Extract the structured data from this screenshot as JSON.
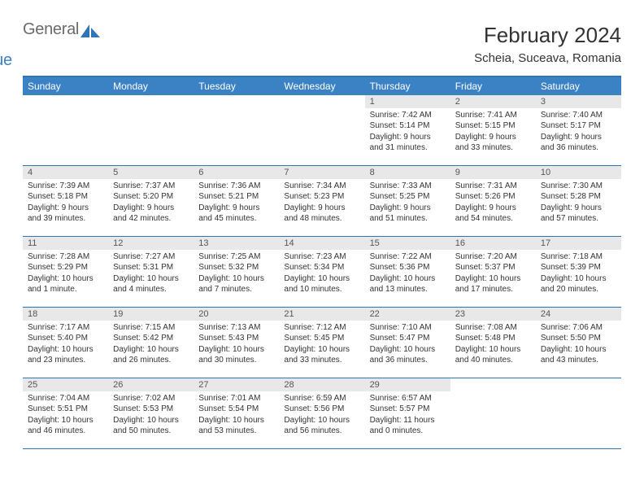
{
  "logo": {
    "general": "General",
    "blue": "Blue"
  },
  "title": "February 2024",
  "location": "Scheia, Suceava, Romania",
  "colors": {
    "header_bar": "#3b82c4",
    "border": "#2f74b5",
    "day_number_bg": "#e8e8e8",
    "text": "#333333",
    "logo_gray": "#6b6b6b",
    "logo_blue": "#3b82c4"
  },
  "weekdays": [
    "Sunday",
    "Monday",
    "Tuesday",
    "Wednesday",
    "Thursday",
    "Friday",
    "Saturday"
  ],
  "weeks": [
    [
      {
        "n": "",
        "sr": "",
        "ss": "",
        "dl": ""
      },
      {
        "n": "",
        "sr": "",
        "ss": "",
        "dl": ""
      },
      {
        "n": "",
        "sr": "",
        "ss": "",
        "dl": ""
      },
      {
        "n": "",
        "sr": "",
        "ss": "",
        "dl": ""
      },
      {
        "n": "1",
        "sr": "Sunrise: 7:42 AM",
        "ss": "Sunset: 5:14 PM",
        "dl": "Daylight: 9 hours and 31 minutes."
      },
      {
        "n": "2",
        "sr": "Sunrise: 7:41 AM",
        "ss": "Sunset: 5:15 PM",
        "dl": "Daylight: 9 hours and 33 minutes."
      },
      {
        "n": "3",
        "sr": "Sunrise: 7:40 AM",
        "ss": "Sunset: 5:17 PM",
        "dl": "Daylight: 9 hours and 36 minutes."
      }
    ],
    [
      {
        "n": "4",
        "sr": "Sunrise: 7:39 AM",
        "ss": "Sunset: 5:18 PM",
        "dl": "Daylight: 9 hours and 39 minutes."
      },
      {
        "n": "5",
        "sr": "Sunrise: 7:37 AM",
        "ss": "Sunset: 5:20 PM",
        "dl": "Daylight: 9 hours and 42 minutes."
      },
      {
        "n": "6",
        "sr": "Sunrise: 7:36 AM",
        "ss": "Sunset: 5:21 PM",
        "dl": "Daylight: 9 hours and 45 minutes."
      },
      {
        "n": "7",
        "sr": "Sunrise: 7:34 AM",
        "ss": "Sunset: 5:23 PM",
        "dl": "Daylight: 9 hours and 48 minutes."
      },
      {
        "n": "8",
        "sr": "Sunrise: 7:33 AM",
        "ss": "Sunset: 5:25 PM",
        "dl": "Daylight: 9 hours and 51 minutes."
      },
      {
        "n": "9",
        "sr": "Sunrise: 7:31 AM",
        "ss": "Sunset: 5:26 PM",
        "dl": "Daylight: 9 hours and 54 minutes."
      },
      {
        "n": "10",
        "sr": "Sunrise: 7:30 AM",
        "ss": "Sunset: 5:28 PM",
        "dl": "Daylight: 9 hours and 57 minutes."
      }
    ],
    [
      {
        "n": "11",
        "sr": "Sunrise: 7:28 AM",
        "ss": "Sunset: 5:29 PM",
        "dl": "Daylight: 10 hours and 1 minute."
      },
      {
        "n": "12",
        "sr": "Sunrise: 7:27 AM",
        "ss": "Sunset: 5:31 PM",
        "dl": "Daylight: 10 hours and 4 minutes."
      },
      {
        "n": "13",
        "sr": "Sunrise: 7:25 AM",
        "ss": "Sunset: 5:32 PM",
        "dl": "Daylight: 10 hours and 7 minutes."
      },
      {
        "n": "14",
        "sr": "Sunrise: 7:23 AM",
        "ss": "Sunset: 5:34 PM",
        "dl": "Daylight: 10 hours and 10 minutes."
      },
      {
        "n": "15",
        "sr": "Sunrise: 7:22 AM",
        "ss": "Sunset: 5:36 PM",
        "dl": "Daylight: 10 hours and 13 minutes."
      },
      {
        "n": "16",
        "sr": "Sunrise: 7:20 AM",
        "ss": "Sunset: 5:37 PM",
        "dl": "Daylight: 10 hours and 17 minutes."
      },
      {
        "n": "17",
        "sr": "Sunrise: 7:18 AM",
        "ss": "Sunset: 5:39 PM",
        "dl": "Daylight: 10 hours and 20 minutes."
      }
    ],
    [
      {
        "n": "18",
        "sr": "Sunrise: 7:17 AM",
        "ss": "Sunset: 5:40 PM",
        "dl": "Daylight: 10 hours and 23 minutes."
      },
      {
        "n": "19",
        "sr": "Sunrise: 7:15 AM",
        "ss": "Sunset: 5:42 PM",
        "dl": "Daylight: 10 hours and 26 minutes."
      },
      {
        "n": "20",
        "sr": "Sunrise: 7:13 AM",
        "ss": "Sunset: 5:43 PM",
        "dl": "Daylight: 10 hours and 30 minutes."
      },
      {
        "n": "21",
        "sr": "Sunrise: 7:12 AM",
        "ss": "Sunset: 5:45 PM",
        "dl": "Daylight: 10 hours and 33 minutes."
      },
      {
        "n": "22",
        "sr": "Sunrise: 7:10 AM",
        "ss": "Sunset: 5:47 PM",
        "dl": "Daylight: 10 hours and 36 minutes."
      },
      {
        "n": "23",
        "sr": "Sunrise: 7:08 AM",
        "ss": "Sunset: 5:48 PM",
        "dl": "Daylight: 10 hours and 40 minutes."
      },
      {
        "n": "24",
        "sr": "Sunrise: 7:06 AM",
        "ss": "Sunset: 5:50 PM",
        "dl": "Daylight: 10 hours and 43 minutes."
      }
    ],
    [
      {
        "n": "25",
        "sr": "Sunrise: 7:04 AM",
        "ss": "Sunset: 5:51 PM",
        "dl": "Daylight: 10 hours and 46 minutes."
      },
      {
        "n": "26",
        "sr": "Sunrise: 7:02 AM",
        "ss": "Sunset: 5:53 PM",
        "dl": "Daylight: 10 hours and 50 minutes."
      },
      {
        "n": "27",
        "sr": "Sunrise: 7:01 AM",
        "ss": "Sunset: 5:54 PM",
        "dl": "Daylight: 10 hours and 53 minutes."
      },
      {
        "n": "28",
        "sr": "Sunrise: 6:59 AM",
        "ss": "Sunset: 5:56 PM",
        "dl": "Daylight: 10 hours and 56 minutes."
      },
      {
        "n": "29",
        "sr": "Sunrise: 6:57 AM",
        "ss": "Sunset: 5:57 PM",
        "dl": "Daylight: 11 hours and 0 minutes."
      },
      {
        "n": "",
        "sr": "",
        "ss": "",
        "dl": ""
      },
      {
        "n": "",
        "sr": "",
        "ss": "",
        "dl": ""
      }
    ]
  ]
}
